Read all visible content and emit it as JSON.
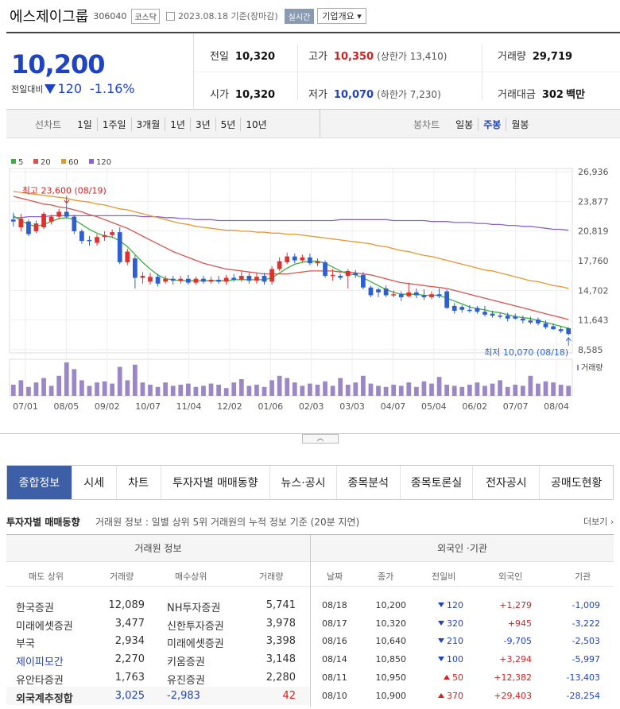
{
  "header": {
    "name": "에스제이그룹",
    "code": "306040",
    "market": "코스닥",
    "date_text": "2023.08.18 기준(장마감)",
    "live_label": "실시간",
    "company_info_label": "기업개요 ▾"
  },
  "quote": {
    "price": "10,200",
    "change_label": "전일대비",
    "change": "120",
    "change_pct": "-1.16%",
    "prev_close_label": "전일",
    "prev_close": "10,320",
    "high_label": "고가",
    "high": "10,350",
    "upper_limit": "(상한가 13,410)",
    "volume_label": "거래량",
    "volume": "29,719",
    "open_label": "시가",
    "open": "10,320",
    "low_label": "저가",
    "low": "10,070",
    "lower_limit": "(하한가 7,230)",
    "value_label": "거래대금",
    "value": "302",
    "value_unit": "백만"
  },
  "period_bar": {
    "line_label": "선차트",
    "line_options": [
      "1일",
      "1주일",
      "3개월",
      "1년",
      "3년",
      "5년",
      "10년"
    ],
    "candle_label": "봉차트",
    "candle_options": [
      "일봉",
      "주봉",
      "월봉"
    ],
    "candle_selected": "주봉"
  },
  "chart_data": {
    "type": "candlestick",
    "legend": [
      {
        "name": "5",
        "color": "#3cb043"
      },
      {
        "name": "20",
        "color": "#d9534f"
      },
      {
        "name": "60",
        "color": "#e8962f"
      },
      {
        "name": "120",
        "color": "#8a63c9"
      }
    ],
    "y_ticks": [
      "26,936",
      "23,877",
      "20,819",
      "17,760",
      "14,702",
      "11,643",
      "8,585"
    ],
    "ylim": [
      8585,
      26936
    ],
    "x_ticks": [
      "07/01",
      "08/05",
      "09/02",
      "10/07",
      "11/04",
      "12/02",
      "01/06",
      "02/03",
      "03/03",
      "04/07",
      "05/04",
      "06/02",
      "07/07",
      "08/04"
    ],
    "max_annotation": "최고 23,600 (08/19)",
    "min_annotation": "최저 10,070 (08/18)",
    "volume_label": "거래량",
    "candles": [
      {
        "o": 22000,
        "c": 21800,
        "h": 22700,
        "l": 21300
      },
      {
        "o": 21200,
        "c": 22100,
        "h": 22600,
        "l": 20800
      },
      {
        "o": 21800,
        "c": 20500,
        "h": 22000,
        "l": 20300
      },
      {
        "o": 20800,
        "c": 21600,
        "h": 21900,
        "l": 20600
      },
      {
        "o": 21200,
        "c": 22600,
        "h": 22800,
        "l": 21000
      },
      {
        "o": 21800,
        "c": 22300,
        "h": 22500,
        "l": 21500
      },
      {
        "o": 22300,
        "c": 22800,
        "h": 23100,
        "l": 22000
      },
      {
        "o": 22800,
        "c": 22300,
        "h": 23600,
        "l": 22100
      },
      {
        "o": 22300,
        "c": 20800,
        "h": 22500,
        "l": 20500
      },
      {
        "o": 20800,
        "c": 19800,
        "h": 21000,
        "l": 19500
      },
      {
        "o": 19900,
        "c": 19800,
        "h": 20300,
        "l": 19300
      },
      {
        "o": 19600,
        "c": 20200,
        "h": 20500,
        "l": 19300
      },
      {
        "o": 20200,
        "c": 20400,
        "h": 20800,
        "l": 19800
      },
      {
        "o": 20400,
        "c": 20700,
        "h": 21000,
        "l": 20100
      },
      {
        "o": 20700,
        "c": 17600,
        "h": 21200,
        "l": 17400
      },
      {
        "o": 17600,
        "c": 18700,
        "h": 19000,
        "l": 17300
      },
      {
        "o": 18000,
        "c": 16000,
        "h": 18300,
        "l": 14900
      },
      {
        "o": 16000,
        "c": 16200,
        "h": 16600,
        "l": 15400
      },
      {
        "o": 15600,
        "c": 16100,
        "h": 16500,
        "l": 15300
      },
      {
        "o": 16100,
        "c": 15400,
        "h": 16400,
        "l": 15100
      },
      {
        "o": 15600,
        "c": 15900,
        "h": 16200,
        "l": 15400
      },
      {
        "o": 15900,
        "c": 15700,
        "h": 16200,
        "l": 15300
      },
      {
        "o": 15700,
        "c": 15900,
        "h": 16200,
        "l": 15400
      },
      {
        "o": 15900,
        "c": 15500,
        "h": 16300,
        "l": 15300
      },
      {
        "o": 15500,
        "c": 15900,
        "h": 16100,
        "l": 15300
      },
      {
        "o": 15900,
        "c": 15600,
        "h": 16200,
        "l": 15400
      },
      {
        "o": 15600,
        "c": 15800,
        "h": 16100,
        "l": 15400
      },
      {
        "o": 15800,
        "c": 15600,
        "h": 16200,
        "l": 15400
      },
      {
        "o": 15600,
        "c": 16000,
        "h": 16300,
        "l": 15300
      },
      {
        "o": 16000,
        "c": 15800,
        "h": 16400,
        "l": 15600
      },
      {
        "o": 15800,
        "c": 16200,
        "h": 16700,
        "l": 15600
      },
      {
        "o": 16200,
        "c": 15700,
        "h": 16500,
        "l": 15400
      },
      {
        "o": 15700,
        "c": 16100,
        "h": 16500,
        "l": 15400
      },
      {
        "o": 16200,
        "c": 15600,
        "h": 16500,
        "l": 15300
      },
      {
        "o": 15600,
        "c": 16900,
        "h": 17200,
        "l": 15300
      },
      {
        "o": 16900,
        "c": 17700,
        "h": 18100,
        "l": 16700
      },
      {
        "o": 17600,
        "c": 18200,
        "h": 18600,
        "l": 17400
      },
      {
        "o": 18200,
        "c": 17800,
        "h": 18500,
        "l": 17500
      },
      {
        "o": 17800,
        "c": 18100,
        "h": 18400,
        "l": 17600
      },
      {
        "o": 18100,
        "c": 17500,
        "h": 18500,
        "l": 17300
      },
      {
        "o": 17500,
        "c": 17700,
        "h": 18000,
        "l": 17200
      },
      {
        "o": 17600,
        "c": 16200,
        "h": 17800,
        "l": 16000
      },
      {
        "o": 16300,
        "c": 16300,
        "h": 16900,
        "l": 15700
      },
      {
        "o": 16200,
        "c": 16000,
        "h": 16400,
        "l": 15800
      },
      {
        "o": 16200,
        "c": 16700,
        "h": 16900,
        "l": 14900
      },
      {
        "o": 16500,
        "c": 16300,
        "h": 16800,
        "l": 16000
      },
      {
        "o": 16300,
        "c": 15000,
        "h": 16600,
        "l": 14800
      },
      {
        "o": 15000,
        "c": 14200,
        "h": 15200,
        "l": 14000
      },
      {
        "o": 14800,
        "c": 14500,
        "h": 15000,
        "l": 14000
      },
      {
        "o": 14900,
        "c": 14200,
        "h": 15200,
        "l": 14000
      },
      {
        "o": 14200,
        "c": 14300,
        "h": 14700,
        "l": 14000
      },
      {
        "o": 14300,
        "c": 14000,
        "h": 14600,
        "l": 13600
      },
      {
        "o": 14100,
        "c": 14500,
        "h": 15500,
        "l": 14000
      },
      {
        "o": 14500,
        "c": 14200,
        "h": 14900,
        "l": 13900
      },
      {
        "o": 14200,
        "c": 14000,
        "h": 14800,
        "l": 13700
      },
      {
        "o": 14000,
        "c": 14300,
        "h": 14600,
        "l": 13800
      },
      {
        "o": 14300,
        "c": 14100,
        "h": 14900,
        "l": 13900
      },
      {
        "o": 14600,
        "c": 12900,
        "h": 14800,
        "l": 12800
      },
      {
        "o": 13100,
        "c": 12600,
        "h": 13400,
        "l": 12300
      },
      {
        "o": 13000,
        "c": 12700,
        "h": 13200,
        "l": 12400
      },
      {
        "o": 12700,
        "c": 12600,
        "h": 13200,
        "l": 12400
      },
      {
        "o": 12900,
        "c": 12500,
        "h": 13100,
        "l": 12300
      },
      {
        "o": 12500,
        "c": 12200,
        "h": 13100,
        "l": 12000
      },
      {
        "o": 12300,
        "c": 12100,
        "h": 12600,
        "l": 11900
      },
      {
        "o": 12100,
        "c": 12000,
        "h": 12400,
        "l": 11800
      },
      {
        "o": 12100,
        "c": 11800,
        "h": 12400,
        "l": 11500
      },
      {
        "o": 12000,
        "c": 11800,
        "h": 12300,
        "l": 11700
      },
      {
        "o": 11800,
        "c": 11600,
        "h": 12100,
        "l": 11300
      },
      {
        "o": 11600,
        "c": 11400,
        "h": 12000,
        "l": 11200
      },
      {
        "o": 11700,
        "c": 11300,
        "h": 11900,
        "l": 11100
      },
      {
        "o": 11300,
        "c": 10900,
        "h": 11600,
        "l": 10700
      },
      {
        "o": 11000,
        "c": 10700,
        "h": 11300,
        "l": 10600
      },
      {
        "o": 10700,
        "c": 10500,
        "h": 11000,
        "l": 10300
      },
      {
        "o": 10800,
        "c": 10200,
        "h": 10900,
        "l": 10070
      }
    ],
    "ma": {
      "5": [
        22400,
        21900,
        21500,
        21300,
        21500,
        21800,
        22100,
        22200,
        22000,
        21500,
        21000,
        20600,
        20300,
        20200,
        19800,
        19200,
        18400,
        17600,
        16900,
        16300,
        15900,
        15800,
        15700,
        15700,
        15700,
        15700,
        15700,
        15700,
        15700,
        15800,
        15800,
        15800,
        15800,
        15800,
        16000,
        16500,
        17000,
        17400,
        17600,
        17700,
        17700,
        17500,
        17100,
        16700,
        16400,
        16300,
        16000,
        15600,
        15200,
        14800,
        14500,
        14300,
        14300,
        14300,
        14200,
        14200,
        14200,
        13900,
        13600,
        13300,
        13000,
        12800,
        12700,
        12500,
        12400,
        12200,
        12000,
        11900,
        11800,
        11600,
        11400,
        11200,
        11000,
        10800
      ],
      "20": [
        24400,
        24200,
        24000,
        23800,
        23600,
        23500,
        23300,
        23200,
        23000,
        22800,
        22500,
        22300,
        22000,
        21700,
        21400,
        21100,
        20700,
        20300,
        19900,
        19500,
        19100,
        18700,
        18400,
        18100,
        17800,
        17500,
        17300,
        17100,
        16900,
        16800,
        16700,
        16600,
        16500,
        16400,
        16400,
        16400,
        16400,
        16500,
        16600,
        16700,
        16700,
        16700,
        16700,
        16600,
        16600,
        16500,
        16400,
        16300,
        16100,
        15900,
        15700,
        15500,
        15400,
        15300,
        15200,
        15100,
        15000,
        14900,
        14700,
        14500,
        14300,
        14100,
        13900,
        13700,
        13500,
        13300,
        13100,
        12900,
        12700,
        12500,
        12300,
        12100,
        11900,
        11700
      ],
      "60": [
        24900,
        24800,
        24700,
        24600,
        24500,
        24400,
        24300,
        24200,
        24000,
        23900,
        23800,
        23600,
        23500,
        23300,
        23100,
        23000,
        22800,
        22600,
        22400,
        22200,
        22000,
        21800,
        21600,
        21500,
        21300,
        21200,
        21100,
        21000,
        20900,
        20900,
        20800,
        20800,
        20700,
        20700,
        20600,
        20600,
        20500,
        20500,
        20400,
        20300,
        20200,
        20100,
        20000,
        19900,
        19800,
        19700,
        19600,
        19500,
        19300,
        19200,
        19000,
        18800,
        18700,
        18500,
        18300,
        18200,
        18000,
        17800,
        17600,
        17400,
        17200,
        17000,
        16800,
        16700,
        16500,
        16300,
        16100,
        15900,
        15700,
        15600,
        15400,
        15200,
        15100,
        14900
      ],
      "120": [
        22200,
        22200,
        22300,
        22300,
        22300,
        22400,
        22400,
        22400,
        22400,
        22400,
        22400,
        22400,
        22400,
        22400,
        22400,
        22400,
        22400,
        22300,
        22300,
        22300,
        22200,
        22200,
        22100,
        22100,
        22000,
        22000,
        22000,
        21900,
        21900,
        21900,
        21900,
        21900,
        21900,
        21900,
        21900,
        21900,
        21900,
        21900,
        21900,
        21900,
        21900,
        21900,
        21900,
        22000,
        22000,
        22000,
        22000,
        22000,
        22000,
        22000,
        21900,
        21900,
        21900,
        21900,
        21900,
        21800,
        21800,
        21800,
        21700,
        21700,
        21700,
        21600,
        21600,
        21500,
        21500,
        21400,
        21400,
        21300,
        21300,
        21200,
        21100,
        21000,
        21000,
        20900
      ]
    },
    "volume": [
      10,
      14,
      8,
      12,
      16,
      9,
      18,
      30,
      24,
      14,
      9,
      12,
      13,
      11,
      26,
      14,
      28,
      12,
      10,
      8,
      12,
      9,
      10,
      11,
      8,
      9,
      11,
      10,
      7,
      12,
      15,
      9,
      10,
      8,
      14,
      18,
      16,
      12,
      9,
      11,
      10,
      13,
      9,
      16,
      10,
      12,
      18,
      11,
      9,
      8,
      10,
      9,
      12,
      8,
      13,
      11,
      17,
      10,
      9,
      8,
      10,
      12,
      9,
      11,
      14,
      8,
      10,
      9,
      18,
      11,
      13,
      12,
      10,
      9
    ]
  },
  "tabs": [
    "종합정보",
    "시세",
    "차트",
    "투자자별 매매동향",
    "뉴스·공시",
    "종목분석",
    "종목토론실",
    "전자공시",
    "공매도현황"
  ],
  "investor": {
    "title": "투자자별 매매동향",
    "description": "거래원 정보 : 일별 상위 5위 거래원의 누적 정보 기준 (20분 지연)",
    "more": "더보기",
    "broker_header": "거래원 정보",
    "foreign_header": "외국인 ·기관",
    "broker_cols": [
      "매도 상위",
      "거래량",
      "매수상위",
      "거래량"
    ],
    "foreign_cols": [
      "날짜",
      "종가",
      "전일비",
      "외국인",
      "기관"
    ],
    "brokers": [
      {
        "sell": "한국증권",
        "sell_vol": "12,089",
        "buy": "NH투자증권",
        "buy_vol": "5,741"
      },
      {
        "sell": "미래에셋증권",
        "sell_vol": "3,477",
        "buy": "신한투자증권",
        "buy_vol": "3,978"
      },
      {
        "sell": "부국",
        "sell_vol": "2,934",
        "buy": "미래에셋증권",
        "buy_vol": "3,398"
      },
      {
        "sell": "제이피모간",
        "sell_vol": "2,270",
        "buy": "키움증권",
        "buy_vol": "3,148"
      },
      {
        "sell": "유안타증권",
        "sell_vol": "1,763",
        "buy": "유진증권",
        "buy_vol": "2,280"
      }
    ],
    "foreign_total": {
      "label": "외국계추정합",
      "sell": "3,025",
      "net": "-2,983",
      "buy": "42"
    },
    "foreign_rows": [
      {
        "date": "08/18",
        "close": "10,200",
        "dir": "down",
        "chg": "120",
        "foreign": "+1,279",
        "inst": "-1,009"
      },
      {
        "date": "08/17",
        "close": "10,320",
        "dir": "down",
        "chg": "320",
        "foreign": "+945",
        "inst": "-3,222"
      },
      {
        "date": "08/16",
        "close": "10,640",
        "dir": "down",
        "chg": "210",
        "foreign": "-9,705",
        "inst": "-2,503"
      },
      {
        "date": "08/14",
        "close": "10,850",
        "dir": "down",
        "chg": "100",
        "foreign": "+3,294",
        "inst": "-5,997"
      },
      {
        "date": "08/11",
        "close": "10,950",
        "dir": "up",
        "chg": "50",
        "foreign": "+12,382",
        "inst": "-13,403"
      },
      {
        "date": "08/10",
        "close": "10,900",
        "dir": "up",
        "chg": "370",
        "foreign": "+29,403",
        "inst": "-28,254"
      }
    ]
  }
}
